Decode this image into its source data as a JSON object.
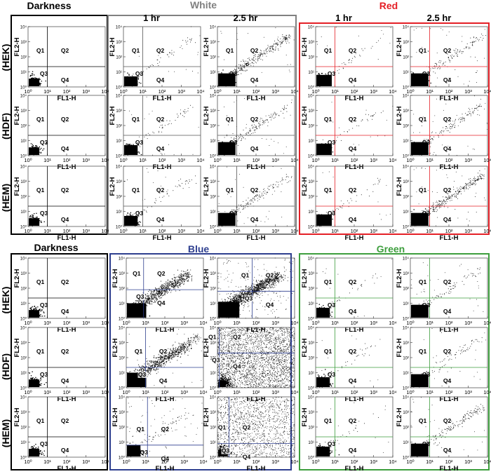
{
  "figure": {
    "top_panel_titles": {
      "darkness": "Darkness",
      "white": "White",
      "red": "Red"
    },
    "bottom_panel_titles": {
      "darkness": "Darkness",
      "blue": "Blue",
      "green": "Green"
    },
    "time_labels": [
      "1 hr",
      "2.5 hr"
    ],
    "row_labels": [
      "(HEK)",
      "(HDF)",
      "(HEM)"
    ],
    "x_axis_label": "FL1-H",
    "y_axis_label": "FL2-H",
    "quadrant_labels": [
      "Q1",
      "Q2",
      "Q3",
      "Q4"
    ],
    "x_tick_labels": [
      "10⁰",
      "10¹",
      "10²",
      "10³",
      "10⁴"
    ],
    "y_tick_labels": [
      "10⁰",
      "10¹",
      "10²",
      "10³",
      "10⁴"
    ],
    "colors": {
      "darkness": "#000000",
      "white": "#808080",
      "red": "#e41f26",
      "blue": "#2e3f8f",
      "green": "#3d9e3d",
      "gate_black": "#000000",
      "gate_gray": "#555555",
      "gate_red": "#e41f26",
      "gate_blue": "#2e3f8f",
      "gate_green": "#3d9e3d"
    }
  },
  "chart_data": {
    "type": "scatter",
    "description": "Flow-cytometry dot plots (FL1-H vs FL2-H, log scale 10^0-10^4) with quadrant gates Q1-Q4 for HEK, HDF and HEM cells in darkness or after 1 hr / 2.5 hr exposure to white, red, blue and green light.",
    "xlabel": "FL1-H",
    "ylabel": "FL2-H",
    "xscale": "log",
    "yscale": "log",
    "xlim": [
      1,
      10000
    ],
    "ylim": [
      1,
      10000
    ],
    "conditions": [
      "Darkness",
      "White 1 hr",
      "White 2.5 hr",
      "Red 1 hr",
      "Red 2.5 hr",
      "Darkness",
      "Blue 1 hr",
      "Blue 2.5 hr",
      "Green 1 hr",
      "Green 2.5 hr"
    ],
    "cell_lines": [
      "HEK",
      "HDF",
      "HEM"
    ],
    "gate_positions_log10": {
      "standard": {
        "x": 1.0,
        "y": 1.35
      },
      "blue_hek_1hr": {
        "x": 0.9,
        "y": 1.9
      }
    }
  }
}
